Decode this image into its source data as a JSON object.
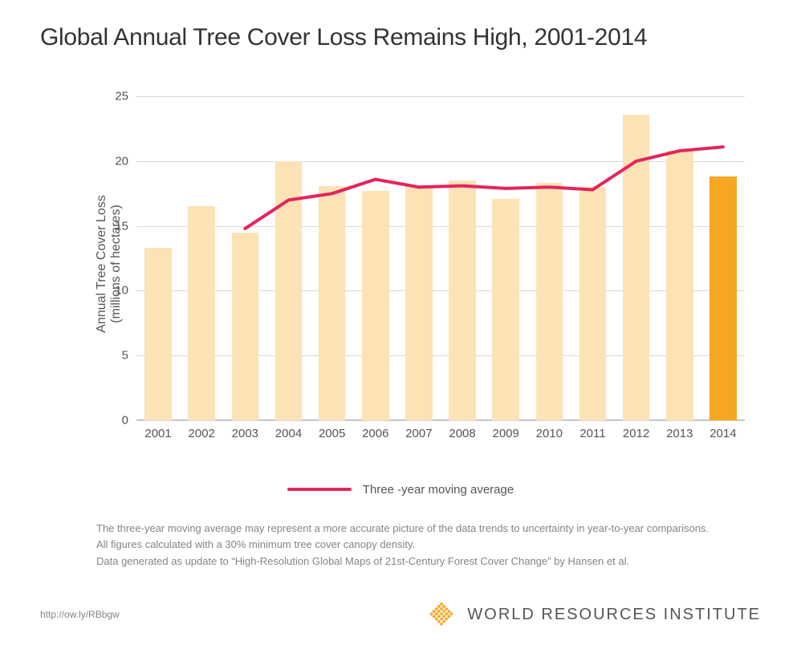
{
  "title": "Global Annual Tree Cover Loss Remains High, 2001-2014",
  "chart": {
    "type": "bar+line",
    "y_axis": {
      "label_line1": "Annual Tree Cover Loss",
      "label_line2": "(millions of hectares)",
      "min": 0,
      "max": 26,
      "ticks": [
        0,
        5,
        10,
        15,
        20,
        25
      ],
      "grid_color": "#d8d8d8",
      "label_fontsize": 16,
      "tick_fontsize": 15,
      "tick_color": "#555555"
    },
    "categories": [
      "2001",
      "2002",
      "2003",
      "2004",
      "2005",
      "2006",
      "2007",
      "2008",
      "2009",
      "2010",
      "2011",
      "2012",
      "2013",
      "2014"
    ],
    "bars": {
      "values": [
        13.3,
        16.5,
        14.5,
        20.0,
        18.1,
        17.7,
        18.1,
        18.5,
        17.1,
        18.3,
        18.0,
        23.6,
        20.8,
        18.8
      ],
      "default_color": "#fbe3b6",
      "highlight_index": 13,
      "highlight_color": "#f5a623",
      "bar_width_fraction": 0.62
    },
    "line": {
      "start_index": 2,
      "values": [
        14.8,
        17.0,
        17.5,
        18.6,
        18.0,
        18.1,
        17.9,
        18.0,
        17.8,
        20.0,
        20.8,
        21.1
      ],
      "color": "#e5245c",
      "width": 4
    },
    "legend": {
      "label": "Three -year moving average",
      "line_color": "#e5245c"
    },
    "background_color": "#ffffff"
  },
  "notes": {
    "line1": "The three-year moving average may represent a more accurate picture of the data trends to uncertainty in year-to-year comparisons.",
    "line2": "All figures calculated with a 30% minimum tree cover canopy density.",
    "line3": "Data generated as update to “High-Resolution Global Maps of 21st-Century Forest Cover Change” by Hansen et al."
  },
  "footer": {
    "url": "http://ow.ly/RBbgw",
    "logo_text": "WORLD RESOURCES INSTITUTE",
    "logo_color": "#f5a623"
  }
}
